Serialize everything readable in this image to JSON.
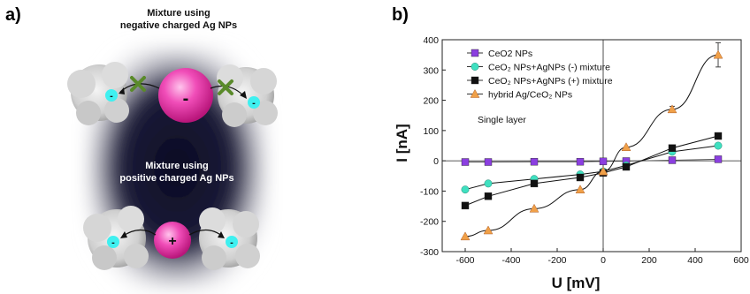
{
  "panel_a": {
    "label": "a)",
    "top_caption_line1": "Mixture using",
    "top_caption_line2": "negative charged Ag NPs",
    "bottom_caption_line1": "Mixture using",
    "bottom_caption_line2": "positive charged Ag NPs",
    "neg_sign": "-",
    "pos_sign": "+",
    "ion_sign": "-"
  },
  "panel_b": {
    "label": "b)"
  },
  "chart_data": {
    "type": "line",
    "xlabel": "U [mV]",
    "ylabel": "I [nA]",
    "annotation": "Single layer",
    "xlim": [
      -700,
      600
    ],
    "ylim": [
      -300,
      400
    ],
    "xticks": [
      -600,
      -400,
      -200,
      0,
      200,
      400,
      600
    ],
    "yticks": [
      -300,
      -200,
      -100,
      0,
      100,
      200,
      300,
      400
    ],
    "legend_position": "top-left",
    "series": [
      {
        "name": "CeO2 NPs",
        "color": "#8b3fe0",
        "marker": "square",
        "x": [
          -600,
          -500,
          -300,
          -100,
          0,
          100,
          300,
          500
        ],
        "y": [
          -4,
          -4,
          -3,
          -3,
          -2,
          -1,
          2,
          5
        ]
      },
      {
        "name": "CeO₂ NPs+AgNPs (-) mixture",
        "color": "#3fe0c0",
        "marker": "circle",
        "x": [
          -600,
          -500,
          -300,
          -100,
          0,
          100,
          300,
          500
        ],
        "y": [
          -95,
          -75,
          -60,
          -45,
          -35,
          -15,
          30,
          50
        ]
      },
      {
        "name": "CeO₂ NPs+AgNPs (+) mixture",
        "color": "#111111",
        "marker": "square",
        "x": [
          -600,
          -500,
          -300,
          -100,
          0,
          100,
          300,
          500
        ],
        "y": [
          -148,
          -117,
          -75,
          -55,
          -40,
          -20,
          42,
          82
        ]
      },
      {
        "name": "hybrid Ag/CeO₂ NPs",
        "color": "#f0a048",
        "marker": "triangle",
        "x": [
          -600,
          -500,
          -300,
          -100,
          0,
          100,
          300,
          500
        ],
        "y": [
          -250,
          -230,
          -158,
          -95,
          -35,
          45,
          170,
          350
        ],
        "error": [
          0,
          0,
          0,
          0,
          0,
          0,
          10,
          40
        ]
      }
    ]
  }
}
